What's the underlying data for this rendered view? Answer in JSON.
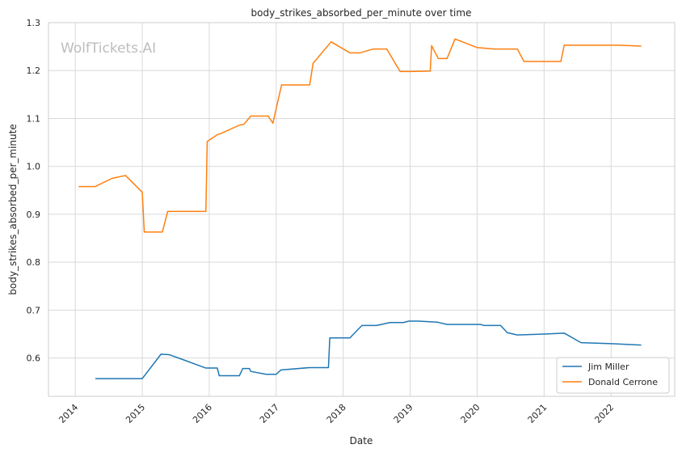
{
  "chart_data": {
    "type": "line",
    "title": "body_strikes_absorbed_per_minute over time",
    "xlabel": "Date",
    "ylabel": "body_strikes_absorbed_per_minute",
    "watermark": "WolfTickets.AI",
    "xlim": [
      2013.6,
      2022.95
    ],
    "ylim": [
      0.52,
      1.3
    ],
    "x_ticks": [
      "2014",
      "2015",
      "2016",
      "2017",
      "2018",
      "2019",
      "2020",
      "2021",
      "2022"
    ],
    "y_ticks": [
      "0.6",
      "0.7",
      "0.8",
      "0.9",
      "1.0",
      "1.1",
      "1.2",
      "1.3"
    ],
    "grid": true,
    "legend_position": "bottom-right",
    "colors": {
      "Jim Miller": "#1f77b4",
      "Donald Cerrone": "#ff7f0e"
    },
    "series": [
      {
        "name": "Jim Miller",
        "x": [
          2014.3,
          2015.0,
          2015.28,
          2015.4,
          2015.6,
          2015.95,
          2016.12,
          2016.15,
          2016.45,
          2016.5,
          2016.6,
          2016.62,
          2016.85,
          2017.0,
          2017.07,
          2017.5,
          2017.78,
          2017.8,
          2018.1,
          2018.28,
          2018.5,
          2018.7,
          2018.9,
          2018.98,
          2019.12,
          2019.4,
          2019.55,
          2019.75,
          2020.05,
          2020.1,
          2020.35,
          2020.45,
          2020.6,
          2021.0,
          2021.3,
          2021.55,
          2022.0,
          2022.45
        ],
        "y": [
          0.557,
          0.557,
          0.608,
          0.607,
          0.597,
          0.579,
          0.579,
          0.563,
          0.563,
          0.578,
          0.578,
          0.572,
          0.566,
          0.566,
          0.575,
          0.58,
          0.58,
          0.642,
          0.642,
          0.668,
          0.668,
          0.674,
          0.674,
          0.677,
          0.677,
          0.675,
          0.67,
          0.67,
          0.67,
          0.668,
          0.668,
          0.653,
          0.648,
          0.65,
          0.652,
          0.632,
          0.63,
          0.627
        ]
      },
      {
        "name": "Donald Cerrone",
        "x": [
          2014.05,
          2014.3,
          2014.55,
          2014.75,
          2015.0,
          2015.03,
          2015.3,
          2015.38,
          2015.6,
          2015.95,
          2015.97,
          2016.12,
          2016.18,
          2016.45,
          2016.52,
          2016.62,
          2016.88,
          2016.95,
          2017.08,
          2017.5,
          2017.55,
          2017.82,
          2018.1,
          2018.25,
          2018.45,
          2018.65,
          2018.85,
          2019.0,
          2019.3,
          2019.32,
          2019.42,
          2019.55,
          2019.67,
          2020.0,
          2020.25,
          2020.6,
          2020.7,
          2021.25,
          2021.3,
          2022.1,
          2022.45
        ],
        "y": [
          0.958,
          0.958,
          0.975,
          0.981,
          0.946,
          0.863,
          0.863,
          0.906,
          0.906,
          0.906,
          1.052,
          1.066,
          1.069,
          1.086,
          1.088,
          1.105,
          1.105,
          1.09,
          1.17,
          1.17,
          1.215,
          1.26,
          1.237,
          1.237,
          1.245,
          1.245,
          1.198,
          1.198,
          1.199,
          1.252,
          1.225,
          1.225,
          1.266,
          1.248,
          1.245,
          1.245,
          1.219,
          1.219,
          1.253,
          1.253,
          1.251
        ]
      }
    ]
  }
}
